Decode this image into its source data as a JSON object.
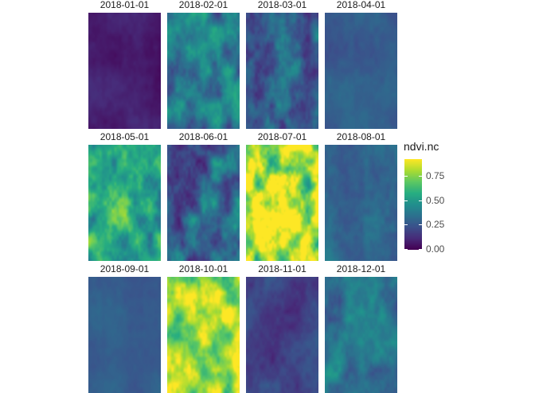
{
  "chart_data": {
    "type": "heatmap",
    "facets": [
      {
        "label": "2018-01-01",
        "mean": 0.08,
        "var": 0.03,
        "style": "flat"
      },
      {
        "label": "2018-02-01",
        "mean": 0.38,
        "var": 0.12,
        "style": "patchy"
      },
      {
        "label": "2018-03-01",
        "mean": 0.28,
        "var": 0.12,
        "style": "patchy"
      },
      {
        "label": "2018-04-01",
        "mean": 0.27,
        "var": 0.04,
        "style": "smooth"
      },
      {
        "label": "2018-05-01",
        "mean": 0.55,
        "var": 0.14,
        "style": "patchy"
      },
      {
        "label": "2018-06-01",
        "mean": 0.3,
        "var": 0.14,
        "style": "patchy"
      },
      {
        "label": "2018-07-01",
        "mean": 0.78,
        "var": 0.2,
        "style": "patchy"
      },
      {
        "label": "2018-08-01",
        "mean": 0.33,
        "var": 0.06,
        "style": "smooth"
      },
      {
        "label": "2018-09-01",
        "mean": 0.28,
        "var": 0.03,
        "style": "smooth"
      },
      {
        "label": "2018-10-01",
        "mean": 0.8,
        "var": 0.14,
        "style": "patchy"
      },
      {
        "label": "2018-11-01",
        "mean": 0.18,
        "var": 0.06,
        "style": "smooth"
      },
      {
        "label": "2018-12-01",
        "mean": 0.36,
        "var": 0.08,
        "style": "patchy"
      }
    ],
    "legend": {
      "title": "ndvi.nc",
      "range": [
        0.0,
        0.92
      ],
      "ticks": [
        {
          "value": 0.0,
          "label": "0.00"
        },
        {
          "value": 0.25,
          "label": "0.25"
        },
        {
          "value": 0.5,
          "label": "0.50"
        },
        {
          "value": 0.75,
          "label": "0.75"
        }
      ],
      "palette": [
        "#440154",
        "#472c7a",
        "#3b518b",
        "#2c718e",
        "#21908d",
        "#27ad81",
        "#5cc863",
        "#aadc32",
        "#fde725"
      ]
    },
    "grid": false,
    "legend_position": "right"
  }
}
